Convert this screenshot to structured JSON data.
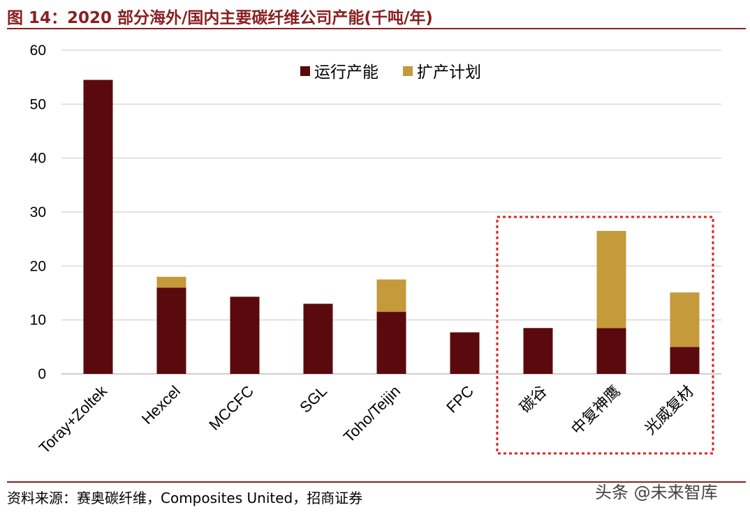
{
  "title": "图 14：2020 部分海外/国内主要碳纤维公司产能(千吨/年)",
  "source": "资料来源：赛奥碳纤维，Composites United，招商证券",
  "watermark": "头条 @未来智库",
  "colors": {
    "running": "#5a0a0c",
    "expansion": "#c49a3a",
    "accent": "#8a1f1f",
    "highlight_box": "#e02020"
  },
  "chart_data": {
    "type": "bar",
    "stacked": true,
    "categories": [
      "Toray+Zoltek",
      "Hexcel",
      "MCCFC",
      "SGL",
      "Toho/Teijin",
      "FPC",
      "碳谷",
      "中复神鹰",
      "光威复材"
    ],
    "series": [
      {
        "name": "运行产能",
        "values": [
          54.5,
          16.0,
          14.3,
          13.0,
          11.5,
          7.7,
          8.5,
          8.5,
          5.0
        ]
      },
      {
        "name": "扩产计划",
        "values": [
          0,
          2.0,
          0,
          0,
          6.0,
          0,
          0,
          18.0,
          10.1
        ]
      }
    ],
    "ylim": [
      0,
      60
    ],
    "yticks": [
      0,
      10,
      20,
      30,
      40,
      50,
      60
    ],
    "grid": true,
    "legend": "top-center",
    "highlight_categories": [
      "碳谷",
      "中复神鹰",
      "光威复材"
    ]
  }
}
